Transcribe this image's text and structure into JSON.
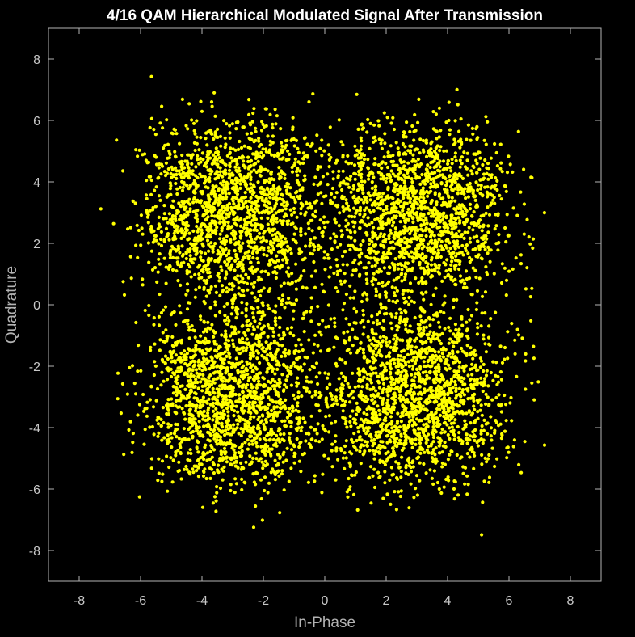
{
  "colors": {
    "background": "#000000",
    "axes": "#b3b3b3",
    "title": "#ffffff",
    "points": "#ffff00"
  },
  "chart_data": {
    "type": "scatter",
    "title": "4/16 QAM Hierarchical Modulated Signal After Transmission",
    "xlabel": "In-Phase",
    "ylabel": "Quadrature",
    "xlim": [
      -9,
      9
    ],
    "ylim": [
      -9,
      9
    ],
    "xticks": [
      -8,
      -6,
      -4,
      -2,
      0,
      2,
      4,
      6,
      8
    ],
    "yticks": [
      -8,
      -6,
      -4,
      -2,
      0,
      2,
      4,
      6,
      8
    ],
    "grid": false,
    "marker_color": "#ffff00",
    "noise_std": 1.05,
    "constellation": {
      "i": [
        -4,
        -2,
        2,
        4
      ],
      "q": [
        -4,
        -2,
        2,
        4
      ]
    },
    "clusters": [
      {
        "quadrant": "top-left",
        "center": [
          -3,
          3
        ]
      },
      {
        "quadrant": "top-right",
        "center": [
          3,
          3
        ]
      },
      {
        "quadrant": "bottom-left",
        "center": [
          -3,
          -3
        ]
      },
      {
        "quadrant": "bottom-right",
        "center": [
          3,
          -3
        ]
      }
    ]
  }
}
